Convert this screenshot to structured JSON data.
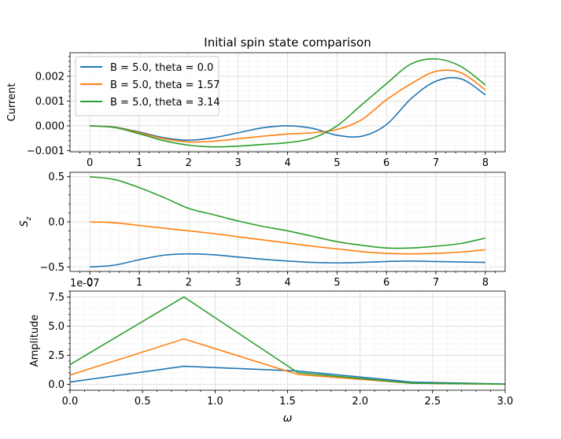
{
  "chart_data": [
    {
      "type": "line",
      "title": "Initial spin state comparison",
      "xlabel": "",
      "ylabel": "Current",
      "xlim": [
        -0.4,
        8.4
      ],
      "ylim": [
        -0.00105,
        0.00295
      ],
      "xticks": [
        0,
        1,
        2,
        3,
        4,
        5,
        6,
        7,
        8
      ],
      "xtick_labels": [
        "0",
        "1",
        "2",
        "3",
        "4",
        "5",
        "6",
        "7",
        "8"
      ],
      "yticks": [
        -0.001,
        0.0,
        0.001,
        0.002
      ],
      "ytick_labels": [
        "−0.001",
        "0.000",
        "0.001",
        "0.002"
      ],
      "grid": true,
      "legend": "upper-left",
      "x": [
        0,
        0.5,
        1,
        1.5,
        2,
        2.5,
        3,
        3.5,
        4,
        4.5,
        5,
        5.5,
        6,
        6.5,
        7,
        7.5,
        8
      ],
      "series": [
        {
          "name": "B = 5.0, theta = 0.0",
          "color": "#1f77b4",
          "values": [
            0.0,
            -5e-05,
            -0.00025,
            -0.00048,
            -0.00058,
            -0.00048,
            -0.00028,
            -8e-05,
            0.0,
            -0.0001,
            -0.00038,
            -0.00042,
            5e-05,
            0.0011,
            0.0018,
            0.0019,
            0.00125
          ]
        },
        {
          "name": "B = 5.0, theta = 1.57",
          "color": "#ff7f0e",
          "values": [
            0.0,
            -6e-05,
            -0.00028,
            -0.00052,
            -0.00065,
            -0.00062,
            -0.00052,
            -0.00042,
            -0.00033,
            -0.00028,
            -0.00015,
            0.00025,
            0.00105,
            0.0017,
            0.0022,
            0.00215,
            0.00145
          ]
        },
        {
          "name": "B = 5.0, theta = 3.14",
          "color": "#2ca02c",
          "values": [
            0.0,
            -7e-05,
            -0.00032,
            -0.0006,
            -0.00078,
            -0.00085,
            -0.00082,
            -0.00075,
            -0.00068,
            -0.0005,
            0.0,
            0.00085,
            0.0017,
            0.0025,
            0.0027,
            0.0024,
            0.00165
          ]
        }
      ]
    },
    {
      "type": "line",
      "title": "",
      "xlabel": "",
      "ylabel": "S_z",
      "xlim": [
        -0.4,
        8.4
      ],
      "ylim": [
        -0.55,
        0.55
      ],
      "xticks": [
        0,
        1,
        2,
        3,
        4,
        5,
        6,
        7,
        8
      ],
      "xtick_labels": [
        "0",
        "1",
        "2",
        "3",
        "4",
        "5",
        "6",
        "7",
        "8"
      ],
      "offset_text": "1e-07",
      "yticks": [
        -0.5,
        0.0,
        0.5
      ],
      "ytick_labels": [
        "−0.5",
        "0.0",
        "0.5"
      ],
      "grid": true,
      "x": [
        0,
        0.5,
        1,
        1.5,
        2,
        2.5,
        3,
        3.5,
        4,
        4.5,
        5,
        5.5,
        6,
        6.5,
        7,
        7.5,
        8
      ],
      "series": [
        {
          "color": "#1f77b4",
          "values": [
            -0.5,
            -0.48,
            -0.42,
            -0.37,
            -0.355,
            -0.365,
            -0.39,
            -0.415,
            -0.435,
            -0.45,
            -0.455,
            -0.45,
            -0.44,
            -0.435,
            -0.44,
            -0.445,
            -0.45
          ]
        },
        {
          "color": "#ff7f0e",
          "values": [
            0.0,
            -0.01,
            -0.04,
            -0.07,
            -0.1,
            -0.13,
            -0.165,
            -0.2,
            -0.235,
            -0.27,
            -0.3,
            -0.33,
            -0.35,
            -0.355,
            -0.35,
            -0.335,
            -0.31
          ]
        },
        {
          "color": "#2ca02c",
          "values": [
            0.5,
            0.47,
            0.38,
            0.27,
            0.15,
            0.08,
            0.01,
            -0.05,
            -0.1,
            -0.16,
            -0.22,
            -0.26,
            -0.29,
            -0.29,
            -0.27,
            -0.24,
            -0.18
          ]
        }
      ]
    },
    {
      "type": "line",
      "title": "",
      "xlabel": "ω",
      "ylabel": "Amplitude",
      "xlim": [
        0.0,
        3.0
      ],
      "ylim": [
        -0.5,
        8.0
      ],
      "xticks": [
        0.0,
        0.5,
        1.0,
        1.5,
        2.0,
        2.5,
        3.0
      ],
      "xtick_labels": [
        "0.0",
        "0.5",
        "1.0",
        "1.5",
        "2.0",
        "2.5",
        "3.0"
      ],
      "yticks": [
        0.0,
        2.5,
        5.0,
        7.5
      ],
      "ytick_labels": [
        "0.0",
        "2.5",
        "5.0",
        "7.5"
      ],
      "grid": true,
      "x": [
        0.0,
        0.785,
        1.571,
        2.356,
        3.142
      ],
      "series": [
        {
          "color": "#1f77b4",
          "values": [
            0.2,
            1.55,
            1.15,
            0.2,
            0.0
          ]
        },
        {
          "color": "#ff7f0e",
          "values": [
            0.8,
            3.9,
            0.85,
            0.1,
            0.0
          ]
        },
        {
          "color": "#2ca02c",
          "values": [
            1.7,
            7.5,
            1.0,
            0.1,
            0.0
          ]
        }
      ]
    }
  ]
}
